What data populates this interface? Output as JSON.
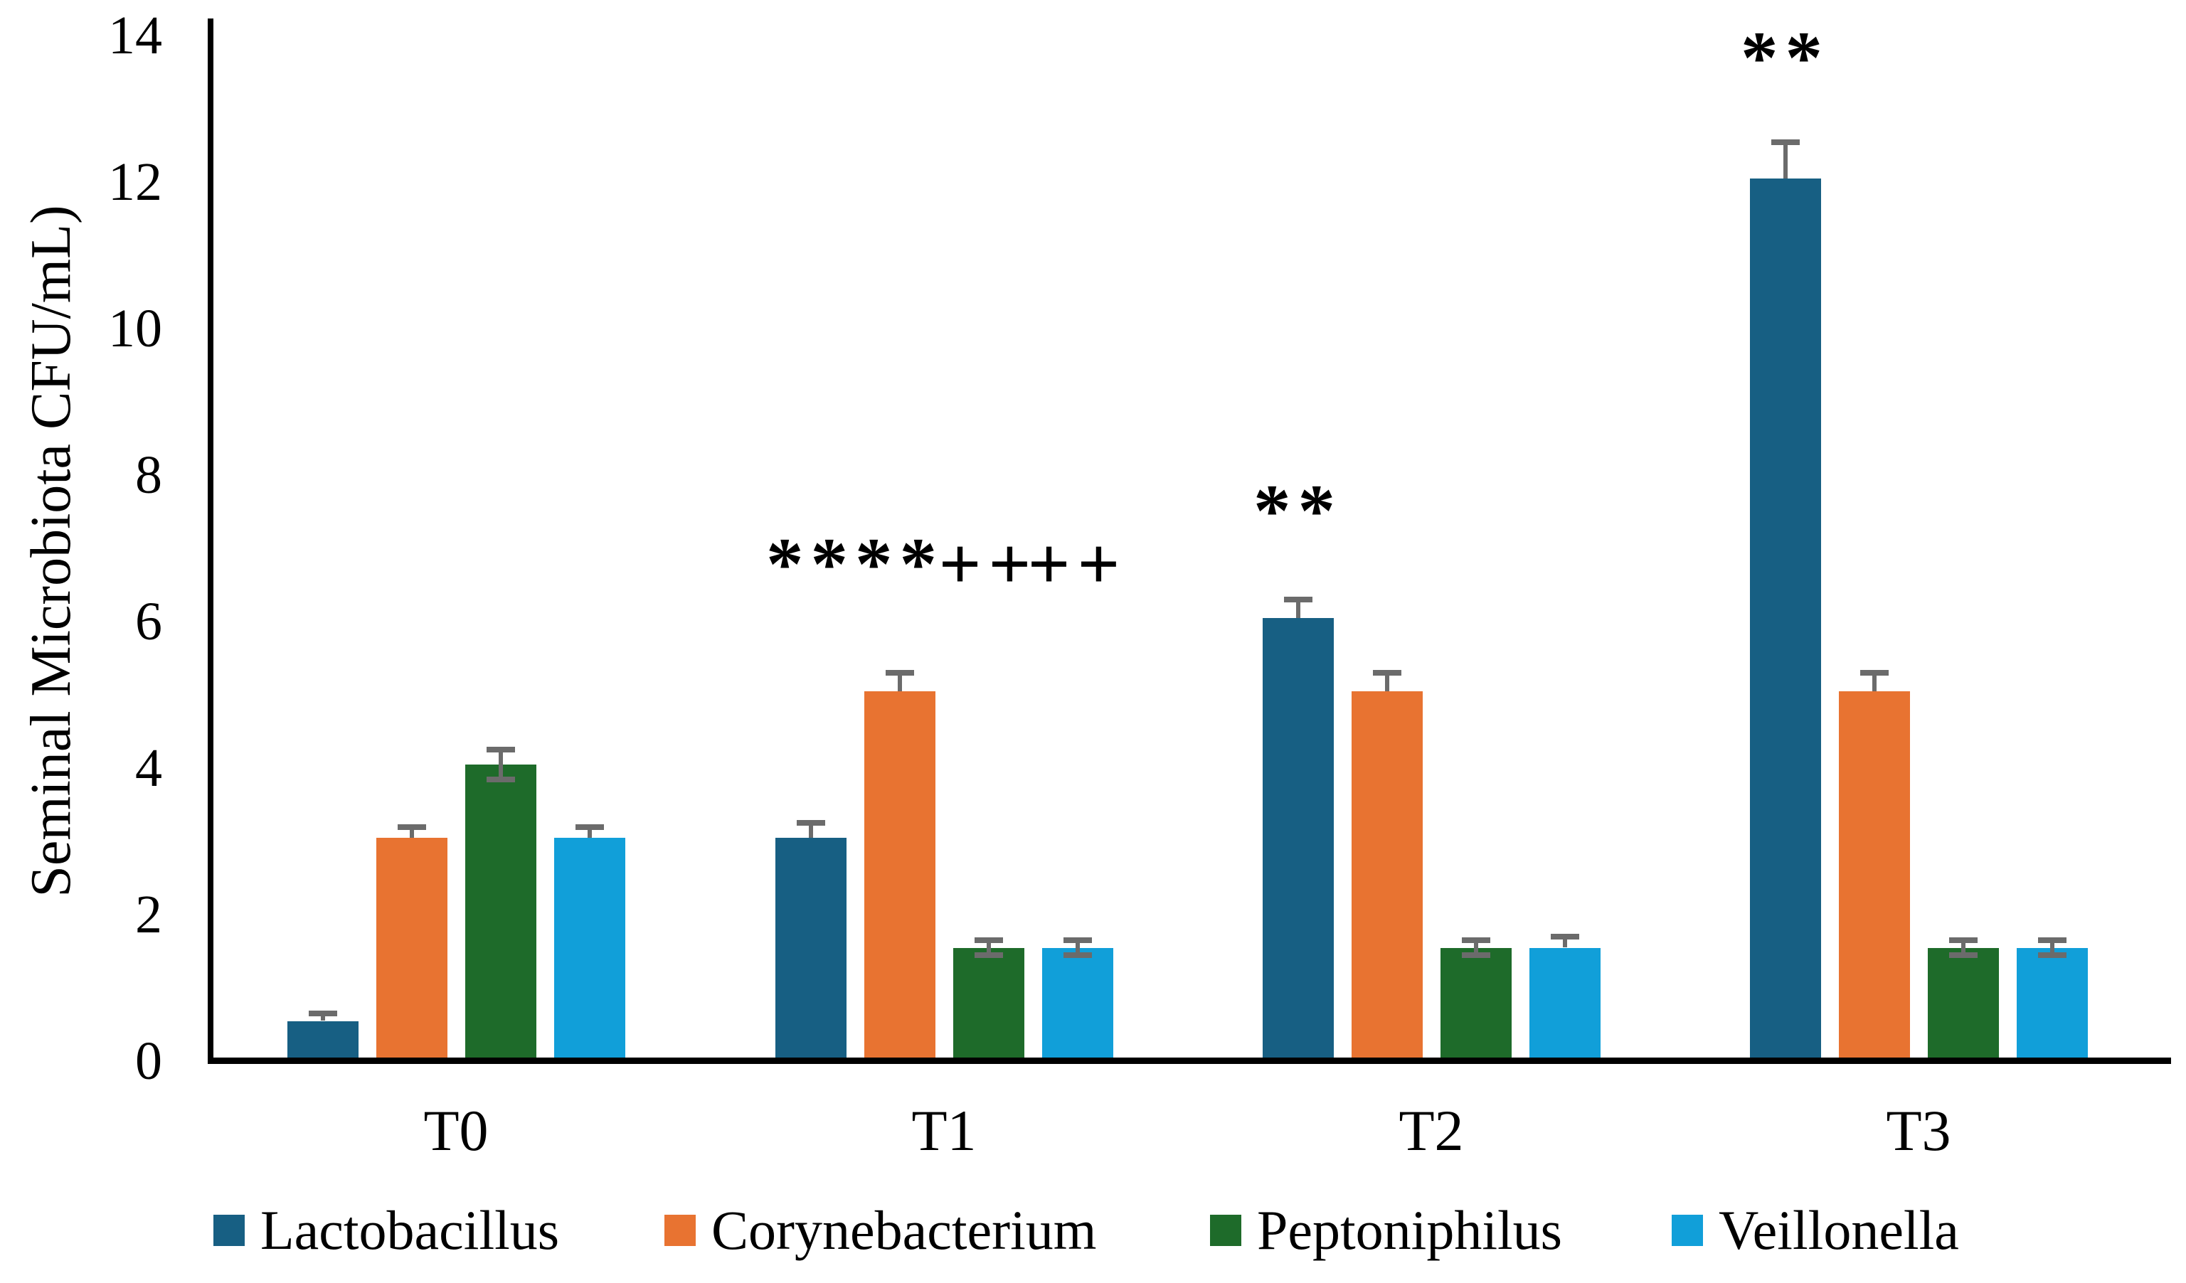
{
  "chart_data": {
    "type": "bar",
    "ylabel": "Seminal Microbiota CFU/mL)",
    "categories": [
      "T0",
      "T1",
      "T2",
      "T3"
    ],
    "yticks": [
      0,
      2,
      4,
      6,
      8,
      10,
      12,
      14
    ],
    "ylim": [
      0,
      14
    ],
    "grid": false,
    "legend_position": "bottom",
    "error_color": "#6B6B6B",
    "axis_color": "#000000",
    "series": [
      {
        "name": "Lactobacillus",
        "color": "#175F83",
        "values": [
          0.5,
          3,
          6,
          12
        ],
        "errors": [
          0.1,
          0.2,
          0.25,
          0.5
        ],
        "error_styles": [
          "T",
          "T",
          "T",
          "T"
        ]
      },
      {
        "name": "Corynebacterium",
        "color": "#E87331",
        "values": [
          3,
          5,
          5,
          5
        ],
        "errors": [
          0.15,
          0.25,
          0.25,
          0.25
        ],
        "error_styles": [
          "T",
          "T",
          "T",
          "T"
        ]
      },
      {
        "name": "Peptoniphilus",
        "color": "#1E6B2A",
        "values": [
          4,
          1.5,
          1.5,
          1.5
        ],
        "errors": [
          0.2,
          0.1,
          0.1,
          0.1
        ],
        "error_styles": [
          "I",
          "I",
          "I",
          "I"
        ]
      },
      {
        "name": "Veillonella",
        "color": "#119FD9",
        "values": [
          3,
          1.5,
          1.5,
          1.5
        ],
        "errors": [
          0.15,
          0.1,
          0.15,
          0.1
        ],
        "error_styles": [
          "T",
          "I",
          "T",
          "I"
        ]
      }
    ],
    "annotations": [
      {
        "text": "**",
        "category": "T1",
        "series": "Lactobacillus"
      },
      {
        "text": "**",
        "category": "T1",
        "series": "Corynebacterium"
      },
      {
        "text": "++",
        "category": "T1",
        "series": "Peptoniphilus"
      },
      {
        "text": "++",
        "category": "T1",
        "series": "Veillonella"
      },
      {
        "text": "**",
        "category": "T2",
        "series": "Lactobacillus"
      },
      {
        "text": "**",
        "category": "T3",
        "series": "Lactobacillus"
      }
    ]
  }
}
